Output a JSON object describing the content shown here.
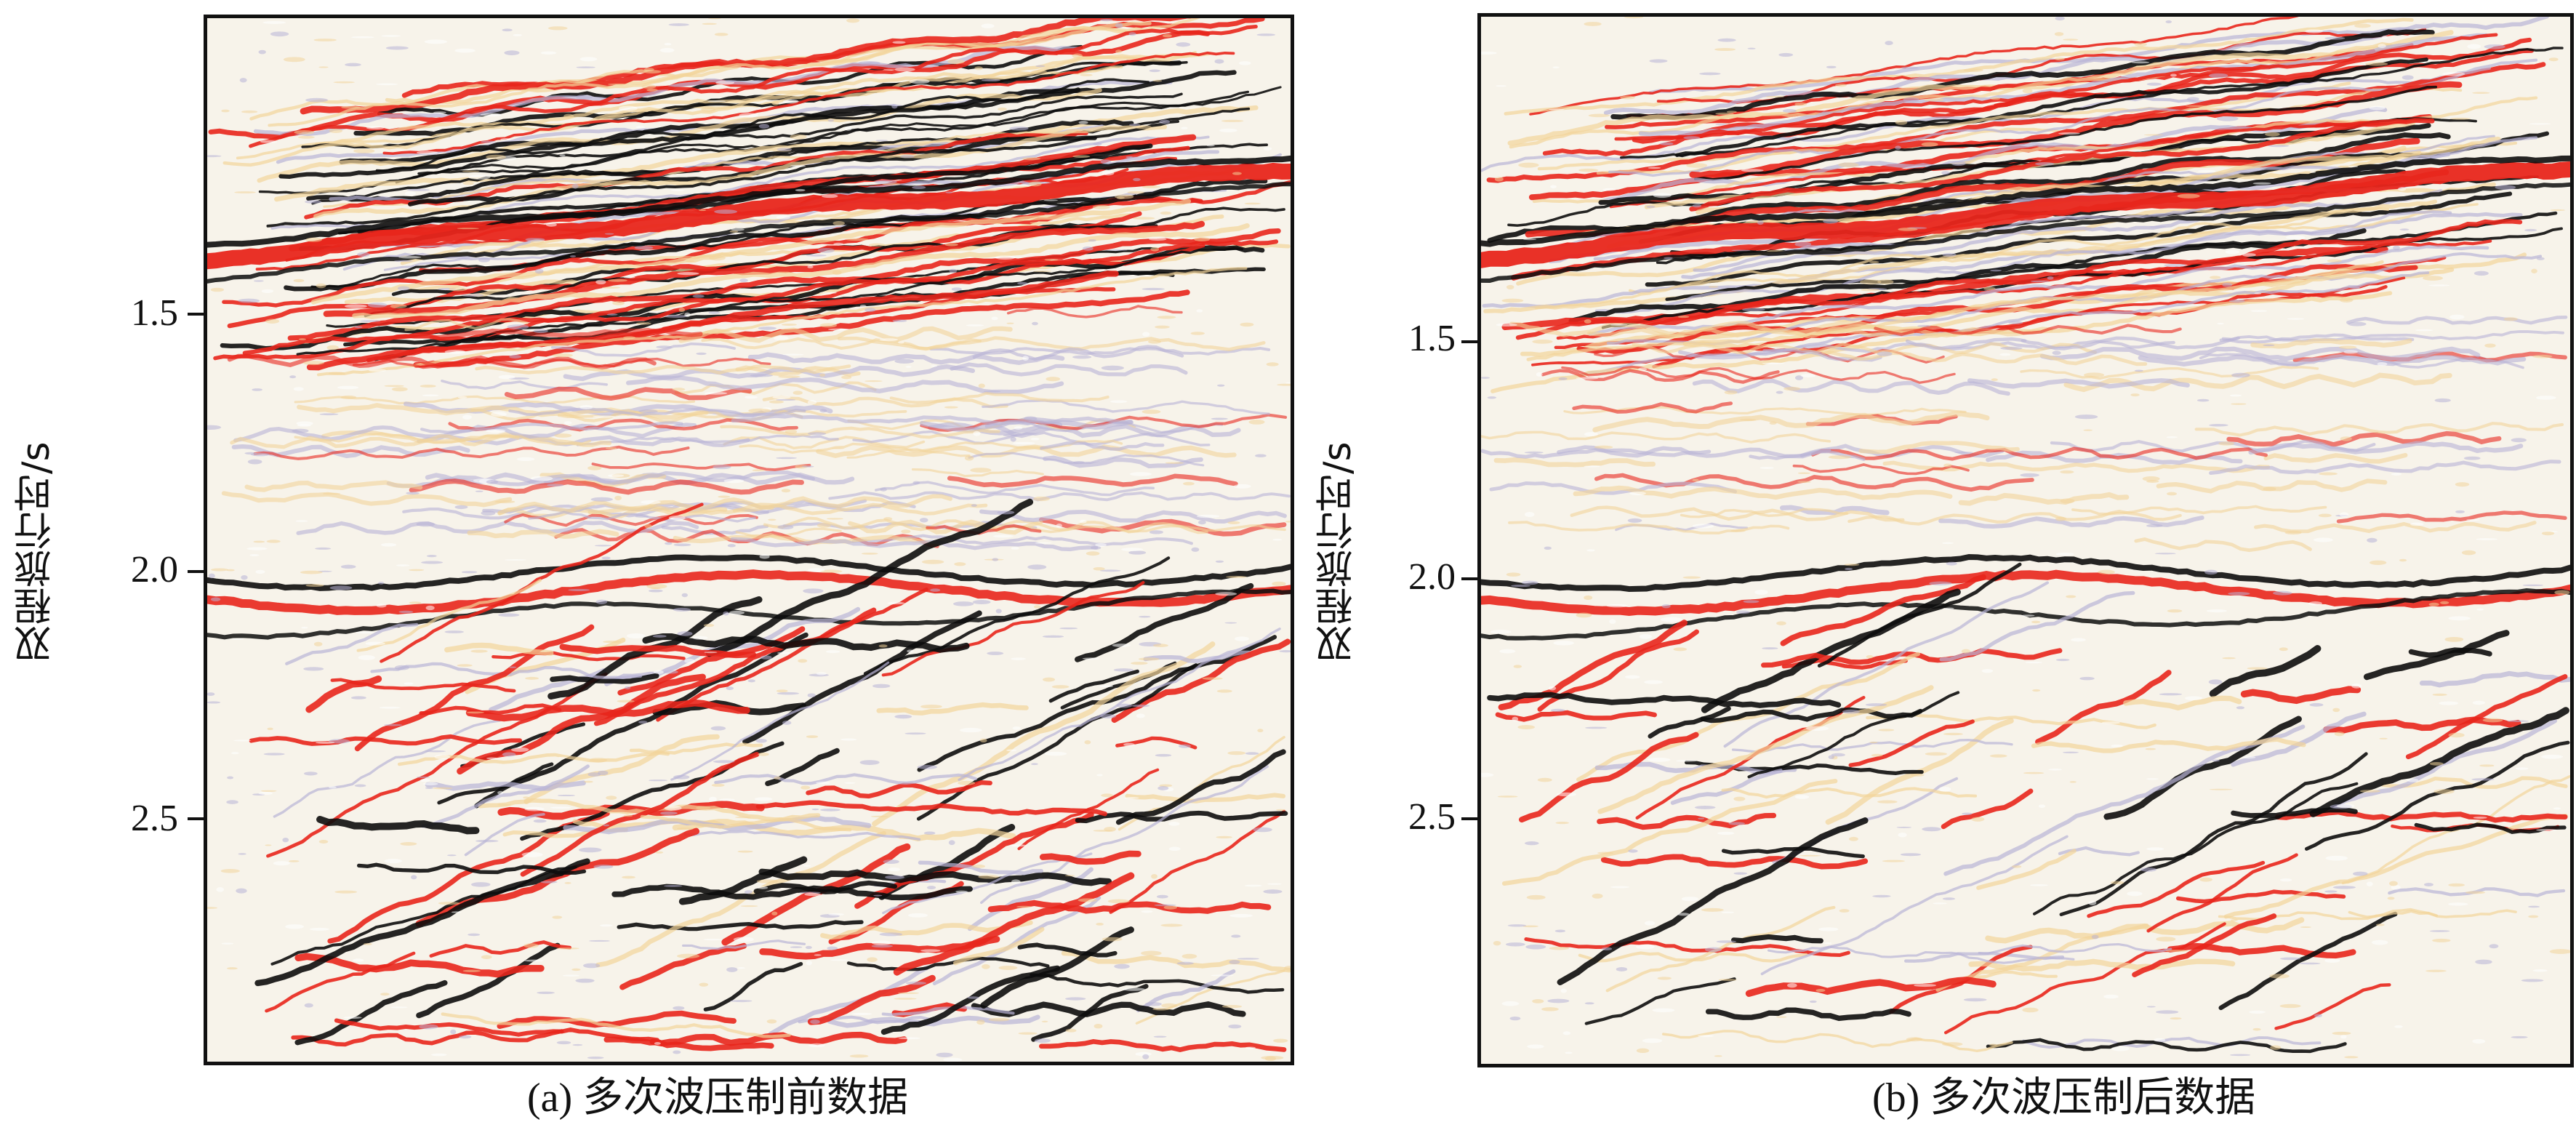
{
  "panels": [
    {
      "id": "a",
      "caption": "(a) 多次波压制前数据",
      "ylabel": "双程旅行时/s",
      "yticks": [
        "1.5",
        "2.0",
        "2.5"
      ]
    },
    {
      "id": "b",
      "caption": "(b) 多次波压制后数据",
      "ylabel": "双程旅行时/s",
      "yticks": [
        "1.5",
        "2.0",
        "2.5"
      ]
    }
  ],
  "colors": {
    "positive_strong": "#e8261c",
    "positive_weak": "#f2d49a",
    "negative_strong": "#0d0d0d",
    "negative_weak": "#b8b3d6",
    "neutral": "#f7f3ea"
  }
}
